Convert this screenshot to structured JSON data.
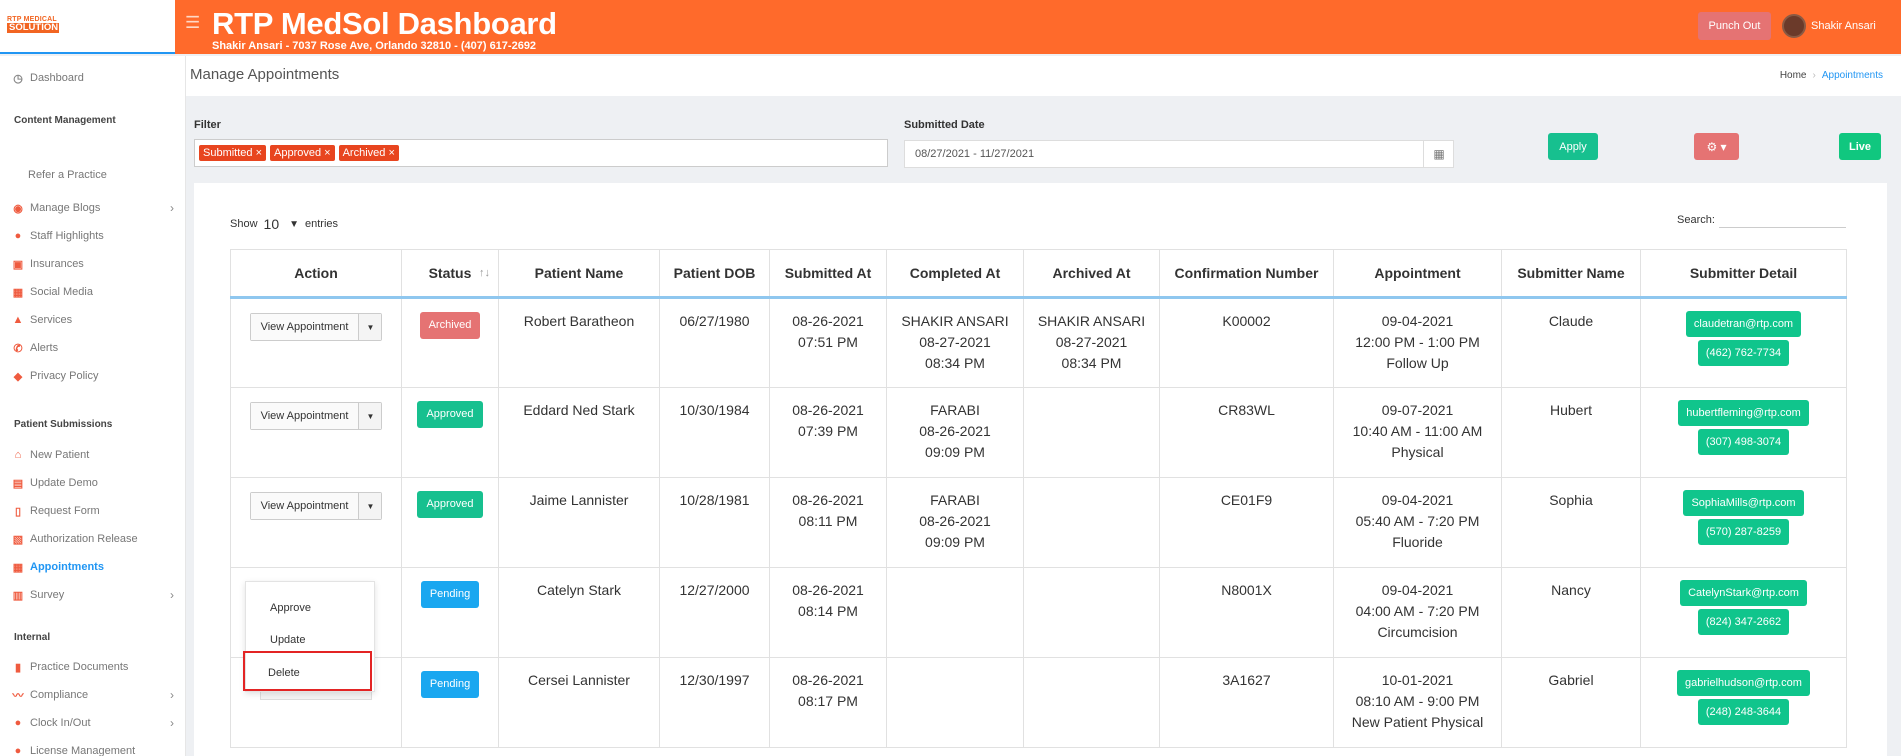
{
  "logo": {
    "line1": "RTP MEDICAL",
    "line2": "SOLUTION"
  },
  "header": {
    "title": "RTP MedSol Dashboard",
    "subtitle": "Shakir Ansari - 7037 Rose Ave, Orlando 32810 - (407) 617-2692",
    "punch_out": "Punch Out",
    "user_name": "Shakir Ansari"
  },
  "sidebar": {
    "dashboard": "Dashboard",
    "content_management": "Content Management",
    "refer": "Refer a Practice",
    "manage_blogs": "Manage Blogs",
    "staff_highlights": "Staff Highlights",
    "insurances": "Insurances",
    "social_media": "Social Media",
    "services": "Services",
    "alerts": "Alerts",
    "privacy_policy": "Privacy Policy",
    "patient_submissions": "Patient Submissions",
    "new_patient": "New Patient",
    "update_demo": "Update Demo",
    "request_form": "Request Form",
    "authorization_release": "Authorization Release",
    "appointments": "Appointments",
    "survey": "Survey",
    "internal": "Internal",
    "practice_documents": "Practice Documents",
    "compliance": "Compliance",
    "clock_in_out": "Clock In/Out",
    "license_management": "License Management"
  },
  "page": {
    "title": "Manage Appointments",
    "breadcrumb_home": "Home",
    "breadcrumb_current": "Appointments"
  },
  "filter": {
    "label": "Filter",
    "tags": [
      "Submitted ×",
      "Approved ×",
      "Archived ×"
    ],
    "date_label": "Submitted Date",
    "date_value": "08/27/2021 - 11/27/2021",
    "apply": "Apply",
    "live": "Live"
  },
  "table_controls": {
    "show": "Show",
    "entries_count": "10",
    "entries": "entries",
    "search_label": "Search:"
  },
  "table": {
    "headers": [
      "Action",
      "Status",
      "Patient Name",
      "Patient DOB",
      "Submitted At",
      "Completed At",
      "Archived At",
      "Confirmation Number",
      "Appointment",
      "Submitter Name",
      "Submitter Detail"
    ],
    "view_label": "View Appointment",
    "rows": [
      {
        "status": "Archived",
        "patient": "Robert Baratheon",
        "dob": "06/27/1980",
        "submitted_date": "08-26-2021",
        "submitted_time": "07:51 PM",
        "completed_by": "SHAKIR ANSARI",
        "completed_date": "08-27-2021",
        "completed_time": "08:34 PM",
        "archived_by": "SHAKIR ANSARI",
        "archived_date": "08-27-2021",
        "archived_time": "08:34 PM",
        "confirmation": "K00002",
        "appt_date": "09-04-2021",
        "appt_time": "12:00 PM - 1:00 PM",
        "appt_type": "Follow Up",
        "submitter": "Claude",
        "email": "claudetran@rtp.com",
        "phone": "(462) 762-7734"
      },
      {
        "status": "Approved",
        "patient": "Eddard Ned Stark",
        "dob": "10/30/1984",
        "submitted_date": "08-26-2021",
        "submitted_time": "07:39 PM",
        "completed_by": "FARABI",
        "completed_date": "08-26-2021",
        "completed_time": "09:09 PM",
        "archived_by": "",
        "archived_date": "",
        "archived_time": "",
        "confirmation": "CR83WL",
        "appt_date": "09-07-2021",
        "appt_time": "10:40 AM - 11:00 AM",
        "appt_type": "Physical",
        "submitter": "Hubert",
        "email": "hubertfleming@rtp.com",
        "phone": "(307) 498-3074"
      },
      {
        "status": "Approved",
        "patient": "Jaime Lannister",
        "dob": "10/28/1981",
        "submitted_date": "08-26-2021",
        "submitted_time": "08:11 PM",
        "completed_by": "FARABI",
        "completed_date": "08-26-2021",
        "completed_time": "09:09 PM",
        "archived_by": "",
        "archived_date": "",
        "archived_time": "",
        "confirmation": "CE01F9",
        "appt_date": "09-04-2021",
        "appt_time": "05:40 AM - 7:20 PM",
        "appt_type": "Fluoride",
        "submitter": "Sophia",
        "email": "SophiaMills@rtp.com",
        "phone": "(570) 287-8259"
      },
      {
        "status": "Pending",
        "patient": "Catelyn Stark",
        "dob": "12/27/2000",
        "submitted_date": "08-26-2021",
        "submitted_time": "08:14 PM",
        "completed_by": "",
        "completed_date": "",
        "completed_time": "",
        "archived_by": "",
        "archived_date": "",
        "archived_time": "",
        "confirmation": "N8001X",
        "appt_date": "09-04-2021",
        "appt_time": "04:00 AM - 7:20 PM",
        "appt_type": "Circumcision",
        "submitter": "Nancy",
        "email": "CatelynStark@rtp.com",
        "phone": "(824) 347-2662"
      },
      {
        "status": "Pending",
        "patient": "Cersei Lannister",
        "dob": "12/30/1997",
        "submitted_date": "08-26-2021",
        "submitted_time": "08:17 PM",
        "completed_by": "",
        "completed_date": "",
        "completed_time": "",
        "archived_by": "",
        "archived_date": "",
        "archived_time": "",
        "confirmation": "3A1627",
        "appt_date": "10-01-2021",
        "appt_time": "08:10 AM - 9:00 PM",
        "appt_type": "New Patient Physical",
        "submitter": "Gabriel",
        "email": "gabrielhudson@rtp.com",
        "phone": "(248) 248-3644"
      }
    ]
  },
  "action_menu": {
    "approve": "Approve",
    "update": "Update",
    "delete": "Delete"
  },
  "colors": {
    "topbar": "#ff6a2b",
    "accent": "#2196f3",
    "approved": "#17c08f",
    "archived": "#e57373",
    "pending": "#1aa7f0",
    "highlight": "#e32424"
  }
}
